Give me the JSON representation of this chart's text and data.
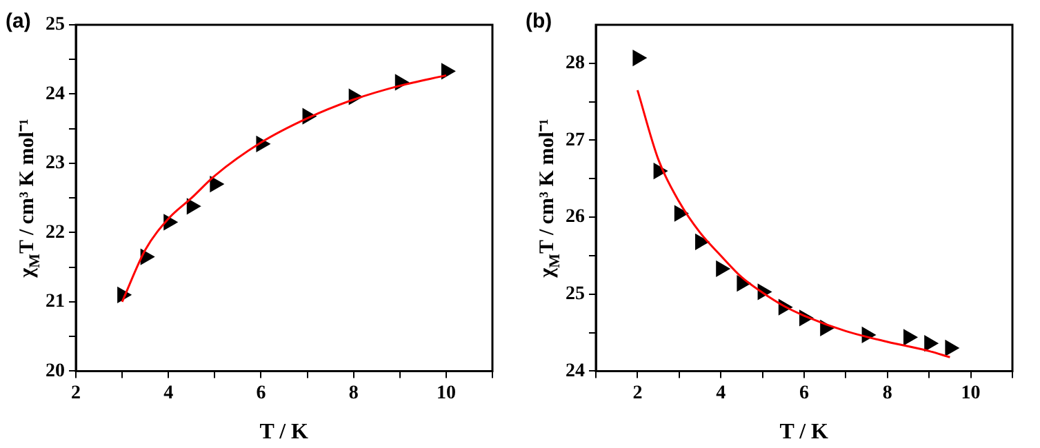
{
  "chart_data": [
    {
      "type": "scatter",
      "title": "(a)",
      "xlabel": "T / K",
      "ylabel": "χ$_{M}$T / cm³ K mol⁻¹",
      "xlim": [
        2,
        11
      ],
      "xticks": [
        2,
        {
          "value": 3,
          "label": null
        },
        4,
        {
          "value": 5,
          "label": null
        },
        6,
        {
          "value": 7,
          "label": null
        },
        8,
        {
          "value": 9,
          "label": null
        },
        10,
        {
          "value": 11,
          "label": null
        }
      ],
      "ylim": [
        20,
        25
      ],
      "yticks": [
        20,
        {
          "value": 20.5,
          "label": null
        },
        21,
        {
          "value": 21.5,
          "label": null
        },
        22,
        {
          "value": 22.5,
          "label": null
        },
        23,
        {
          "value": 23.5,
          "label": null
        },
        24,
        {
          "value": 24.5,
          "label": null
        },
        25
      ],
      "grid": false,
      "legend": false,
      "marker": "triangle",
      "series": [
        {
          "type": "line",
          "color": "#ff0000",
          "marker": "none",
          "x": [
            3,
            3.5,
            4,
            4.5,
            5,
            6,
            7,
            8,
            9,
            10
          ],
          "values": [
            21.0,
            21.75,
            22.2,
            22.5,
            22.82,
            23.3,
            23.65,
            23.92,
            24.12,
            24.27
          ]
        },
        {
          "type": "scatter",
          "color": "#000000",
          "x": [
            3,
            3.5,
            4,
            4.5,
            5,
            6,
            7,
            8,
            9,
            10
          ],
          "values": [
            21.1,
            21.65,
            22.15,
            22.38,
            22.7,
            23.28,
            23.68,
            23.96,
            24.17,
            24.33
          ]
        }
      ]
    },
    {
      "type": "scatter",
      "title": "(b)",
      "xlabel": "T / K",
      "ylabel": "χ$_{M}$T / cm³ K mol⁻¹",
      "xlim": [
        1,
        11
      ],
      "xticks": [
        {
          "value": 1,
          "label": null
        },
        2,
        {
          "value": 3,
          "label": null
        },
        4,
        {
          "value": 5,
          "label": null
        },
        6,
        {
          "value": 7,
          "label": null
        },
        8,
        {
          "value": 9,
          "label": null
        },
        10,
        {
          "value": 11,
          "label": null
        }
      ],
      "ylim": [
        24,
        28.5
      ],
      "yticks": [
        24,
        {
          "value": 24.5,
          "label": null
        },
        25,
        {
          "value": 25.5,
          "label": null
        },
        26,
        {
          "value": 26.5,
          "label": null
        },
        27,
        {
          "value": 27.5,
          "label": null
        },
        28
      ],
      "grid": false,
      "legend": false,
      "marker": "triangle",
      "series": [
        {
          "type": "line",
          "color": "#ff0000",
          "marker": "none",
          "x": [
            2,
            2.5,
            3,
            3.5,
            4,
            4.5,
            5,
            5.5,
            6,
            7,
            8,
            9,
            9.5
          ],
          "values": [
            27.65,
            26.75,
            26.2,
            25.8,
            25.5,
            25.22,
            25.02,
            24.85,
            24.72,
            24.52,
            24.38,
            24.26,
            24.18
          ]
        },
        {
          "type": "scatter",
          "color": "#000000",
          "x": [
            2,
            2.5,
            3,
            3.5,
            4,
            4.5,
            5,
            5.5,
            6,
            6.5,
            7.5,
            8.5,
            9,
            9.5
          ],
          "values": [
            28.07,
            26.6,
            26.05,
            25.68,
            25.33,
            25.14,
            25.03,
            24.83,
            24.69,
            24.56,
            24.47,
            24.44,
            24.36,
            24.3
          ]
        }
      ]
    }
  ]
}
